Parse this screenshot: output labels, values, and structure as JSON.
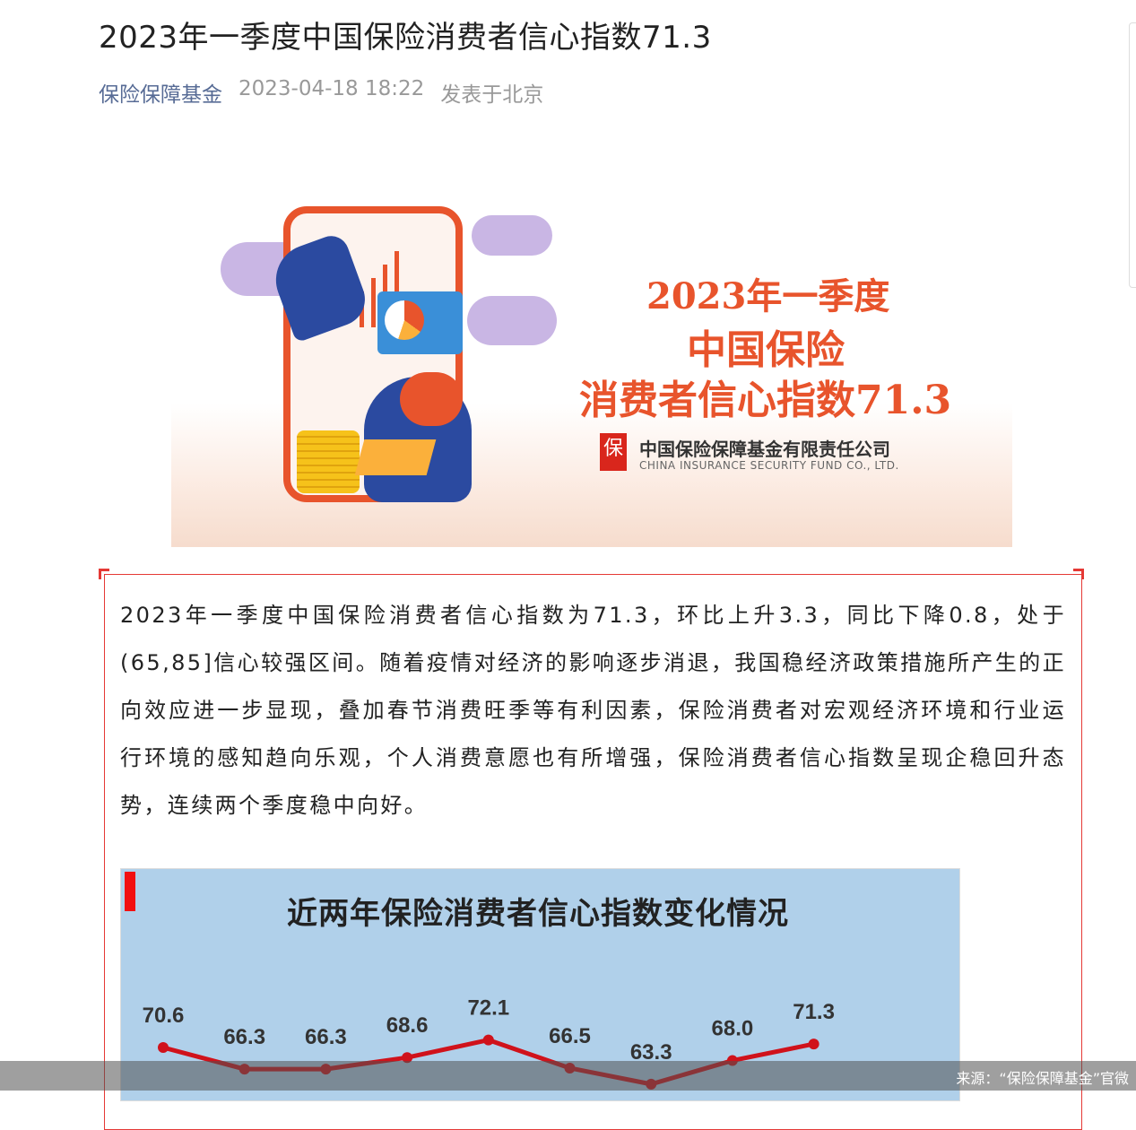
{
  "article": {
    "title": "2023年一季度中国保险消费者信心指数71.3",
    "account": "保险保障基金",
    "datetime": "2023-04-18 18:22",
    "location": "发表于北京"
  },
  "banner": {
    "line1": "2023年一季度",
    "line2": "中国保险",
    "line3": "消费者信心指数71.3",
    "logo_char": "保",
    "company_cn": "中国保险保障基金有限责任公司",
    "company_en": "CHINA INSURANCE SECURITY FUND CO., LTD.",
    "accent": "#e8542c"
  },
  "body": {
    "paragraph": "2023年一季度中国保险消费者信心指数为71.3，环比上升3.3，同比下降0.8，处于(65,85]信心较强区间。随着疫情对经济的影响逐步消退，我国稳经济政策措施所产生的正向效应进一步显现，叠加春节消费旺季等有利因素，保险消费者对宏观经济环境和行业运行环境的感知趋向乐观，个人消费意愿也有所增强，保险消费者信心指数呈现企稳回升态势，连续两个季度稳中向好。"
  },
  "chart_data": {
    "type": "line",
    "title": "近两年保险消费者信心指数变化情况",
    "values": [
      70.6,
      66.3,
      66.3,
      68.6,
      72.1,
      66.5,
      63.3,
      68.0,
      71.3
    ],
    "labels": [
      "70.6",
      "66.3",
      "66.3",
      "68.6",
      "72.1",
      "66.5",
      "63.3",
      "68.0",
      "71.3"
    ],
    "line_color": "#d0121b",
    "background": "#b0d0ea",
    "grid": false
  },
  "footer": {
    "source": "来源：“保险保障基金”官微"
  }
}
